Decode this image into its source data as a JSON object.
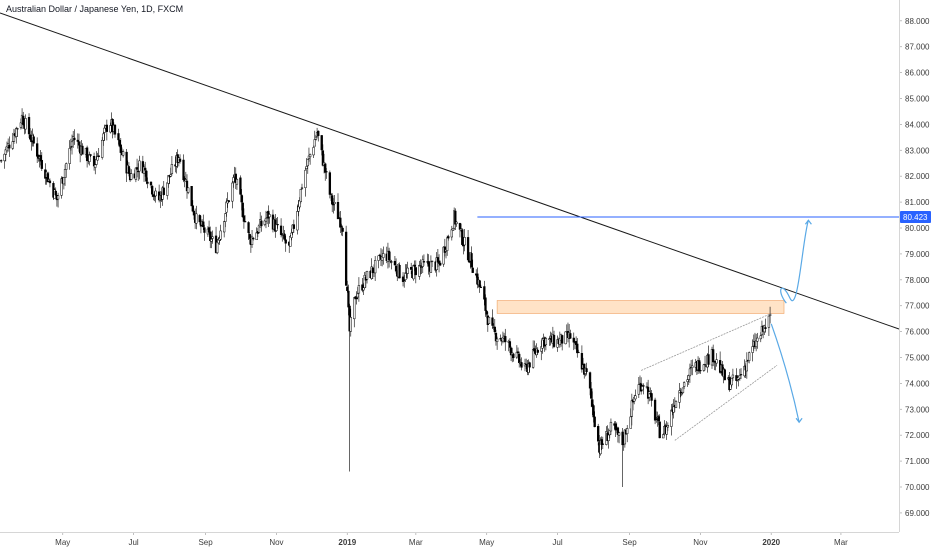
{
  "chart_data": {
    "type": "candlestick",
    "title": "Australian Dollar / Japanese Yen, 1D, FXCM",
    "y_axis_ticks": [
      "69.000",
      "70.000",
      "71.000",
      "72.000",
      "73.000",
      "74.000",
      "75.000",
      "76.000",
      "77.000",
      "78.000",
      "79.000",
      "80.000",
      "81.000",
      "82.000",
      "83.000",
      "84.000",
      "85.000",
      "86.000",
      "87.000",
      "88.000"
    ],
    "x_axis_ticks": [
      "May",
      "Jul",
      "Sep",
      "Nov",
      "2019",
      "Mar",
      "May",
      "Jul",
      "Sep",
      "Nov",
      "2020",
      "Mar"
    ],
    "bold_x_ticks": [
      "2019",
      "2020"
    ],
    "current_price_label": "80.423",
    "current_price_value": 80.423,
    "ylim": [
      68.4,
      88.5
    ],
    "x_range": [
      "2018-03-08",
      "2020-04-20"
    ],
    "series": [
      {
        "x": [
          "2018-03-09",
          "2018-03-27",
          "2018-04-13",
          "2018-04-26",
          "2018-05-10",
          "2018-05-28",
          "2018-06-10",
          "2018-06-28",
          "2018-07-08",
          "2018-07-22",
          "2018-08-09",
          "2018-08-24",
          "2018-09-10",
          "2018-09-26",
          "2018-10-09",
          "2018-10-25",
          "2018-11-12",
          "2018-11-25",
          "2018-12-06",
          "2018-12-18",
          "2018-12-28",
          "2019-01-03",
          "2019-01-08",
          "2019-01-18",
          "2019-02-03",
          "2019-02-18",
          "2019-03-05",
          "2019-03-21",
          "2019-04-03",
          "2019-04-17",
          "2019-04-26",
          "2019-05-05",
          "2019-05-18",
          "2019-06-03",
          "2019-06-18",
          "2019-06-30",
          "2019-07-12",
          "2019-07-27",
          "2019-08-06",
          "2019-08-17",
          "2019-08-26",
          "2019-09-07",
          "2019-09-14",
          "2019-09-28",
          "2019-10-03",
          "2019-10-12",
          "2019-10-26",
          "2019-11-12",
          "2019-11-24",
          "2019-12-03",
          "2019-12-18",
          "2019-12-31"
        ],
        "values": [
          82.6,
          84.3,
          82.5,
          81.1,
          83.5,
          82.4,
          84.2,
          82.0,
          82.5,
          81.0,
          82.8,
          80.3,
          79.3,
          82.0,
          79.5,
          80.5,
          79.2,
          82.1,
          83.7,
          81.1,
          80.1,
          76.0,
          77.4,
          78.1,
          79.0,
          78.1,
          78.5,
          78.6,
          80.4,
          78.8,
          77.6,
          76.0,
          75.6,
          74.5,
          75.7,
          75.6,
          75.8,
          74.2,
          71.5,
          72.3,
          71.7,
          73.8,
          74.1,
          72.0,
          72.3,
          73.6,
          74.6,
          75.1,
          74.0,
          74.1,
          75.5,
          76.5
        ]
      }
    ],
    "annotations": [
      {
        "kind": "trendline",
        "from": [
          "2018-03-08",
          88.3
        ],
        "to": [
          "2020-04-20",
          76.1
        ]
      },
      {
        "kind": "horizontal_line",
        "from": "2019-04-23",
        "to": "2020-04-20",
        "y": 80.423
      },
      {
        "kind": "zone",
        "from": "2019-05-10",
        "to": "2020-01-12",
        "y_low": 76.7,
        "y_high": 77.2
      },
      {
        "kind": "channel_upper",
        "from": [
          "2019-09-11",
          74.5
        ],
        "to": [
          "2020-01-01",
          76.7
        ]
      },
      {
        "kind": "channel_lower",
        "from": [
          "2019-10-10",
          71.8
        ],
        "to": [
          "2020-01-06",
          74.7
        ]
      },
      {
        "kind": "projection_up",
        "points": [
          [
            "2020-01-14",
            77.1
          ],
          [
            "2020-01-05",
            77.6
          ],
          [
            "2020-01-10",
            78.0
          ],
          [
            "2020-01-17",
            77.3
          ],
          [
            "2020-02-02",
            80.3
          ]
        ]
      },
      {
        "kind": "projection_down",
        "points": [
          [
            "2020-01-01",
            76.3
          ],
          [
            "2020-01-16",
            74.4
          ],
          [
            "2020-01-25",
            72.5
          ]
        ]
      }
    ],
    "colors": {
      "candle": "#000000",
      "trendline": "#1a1a1a",
      "horizontal_line": "#2962ff",
      "price_badge": "#2962ff",
      "zone_fill": "#ffcc99",
      "zone_border": "#f0a060",
      "projection": "#5aa9e6",
      "channel": "#9a9a9a",
      "axis_text": "#3c3c3c"
    }
  }
}
